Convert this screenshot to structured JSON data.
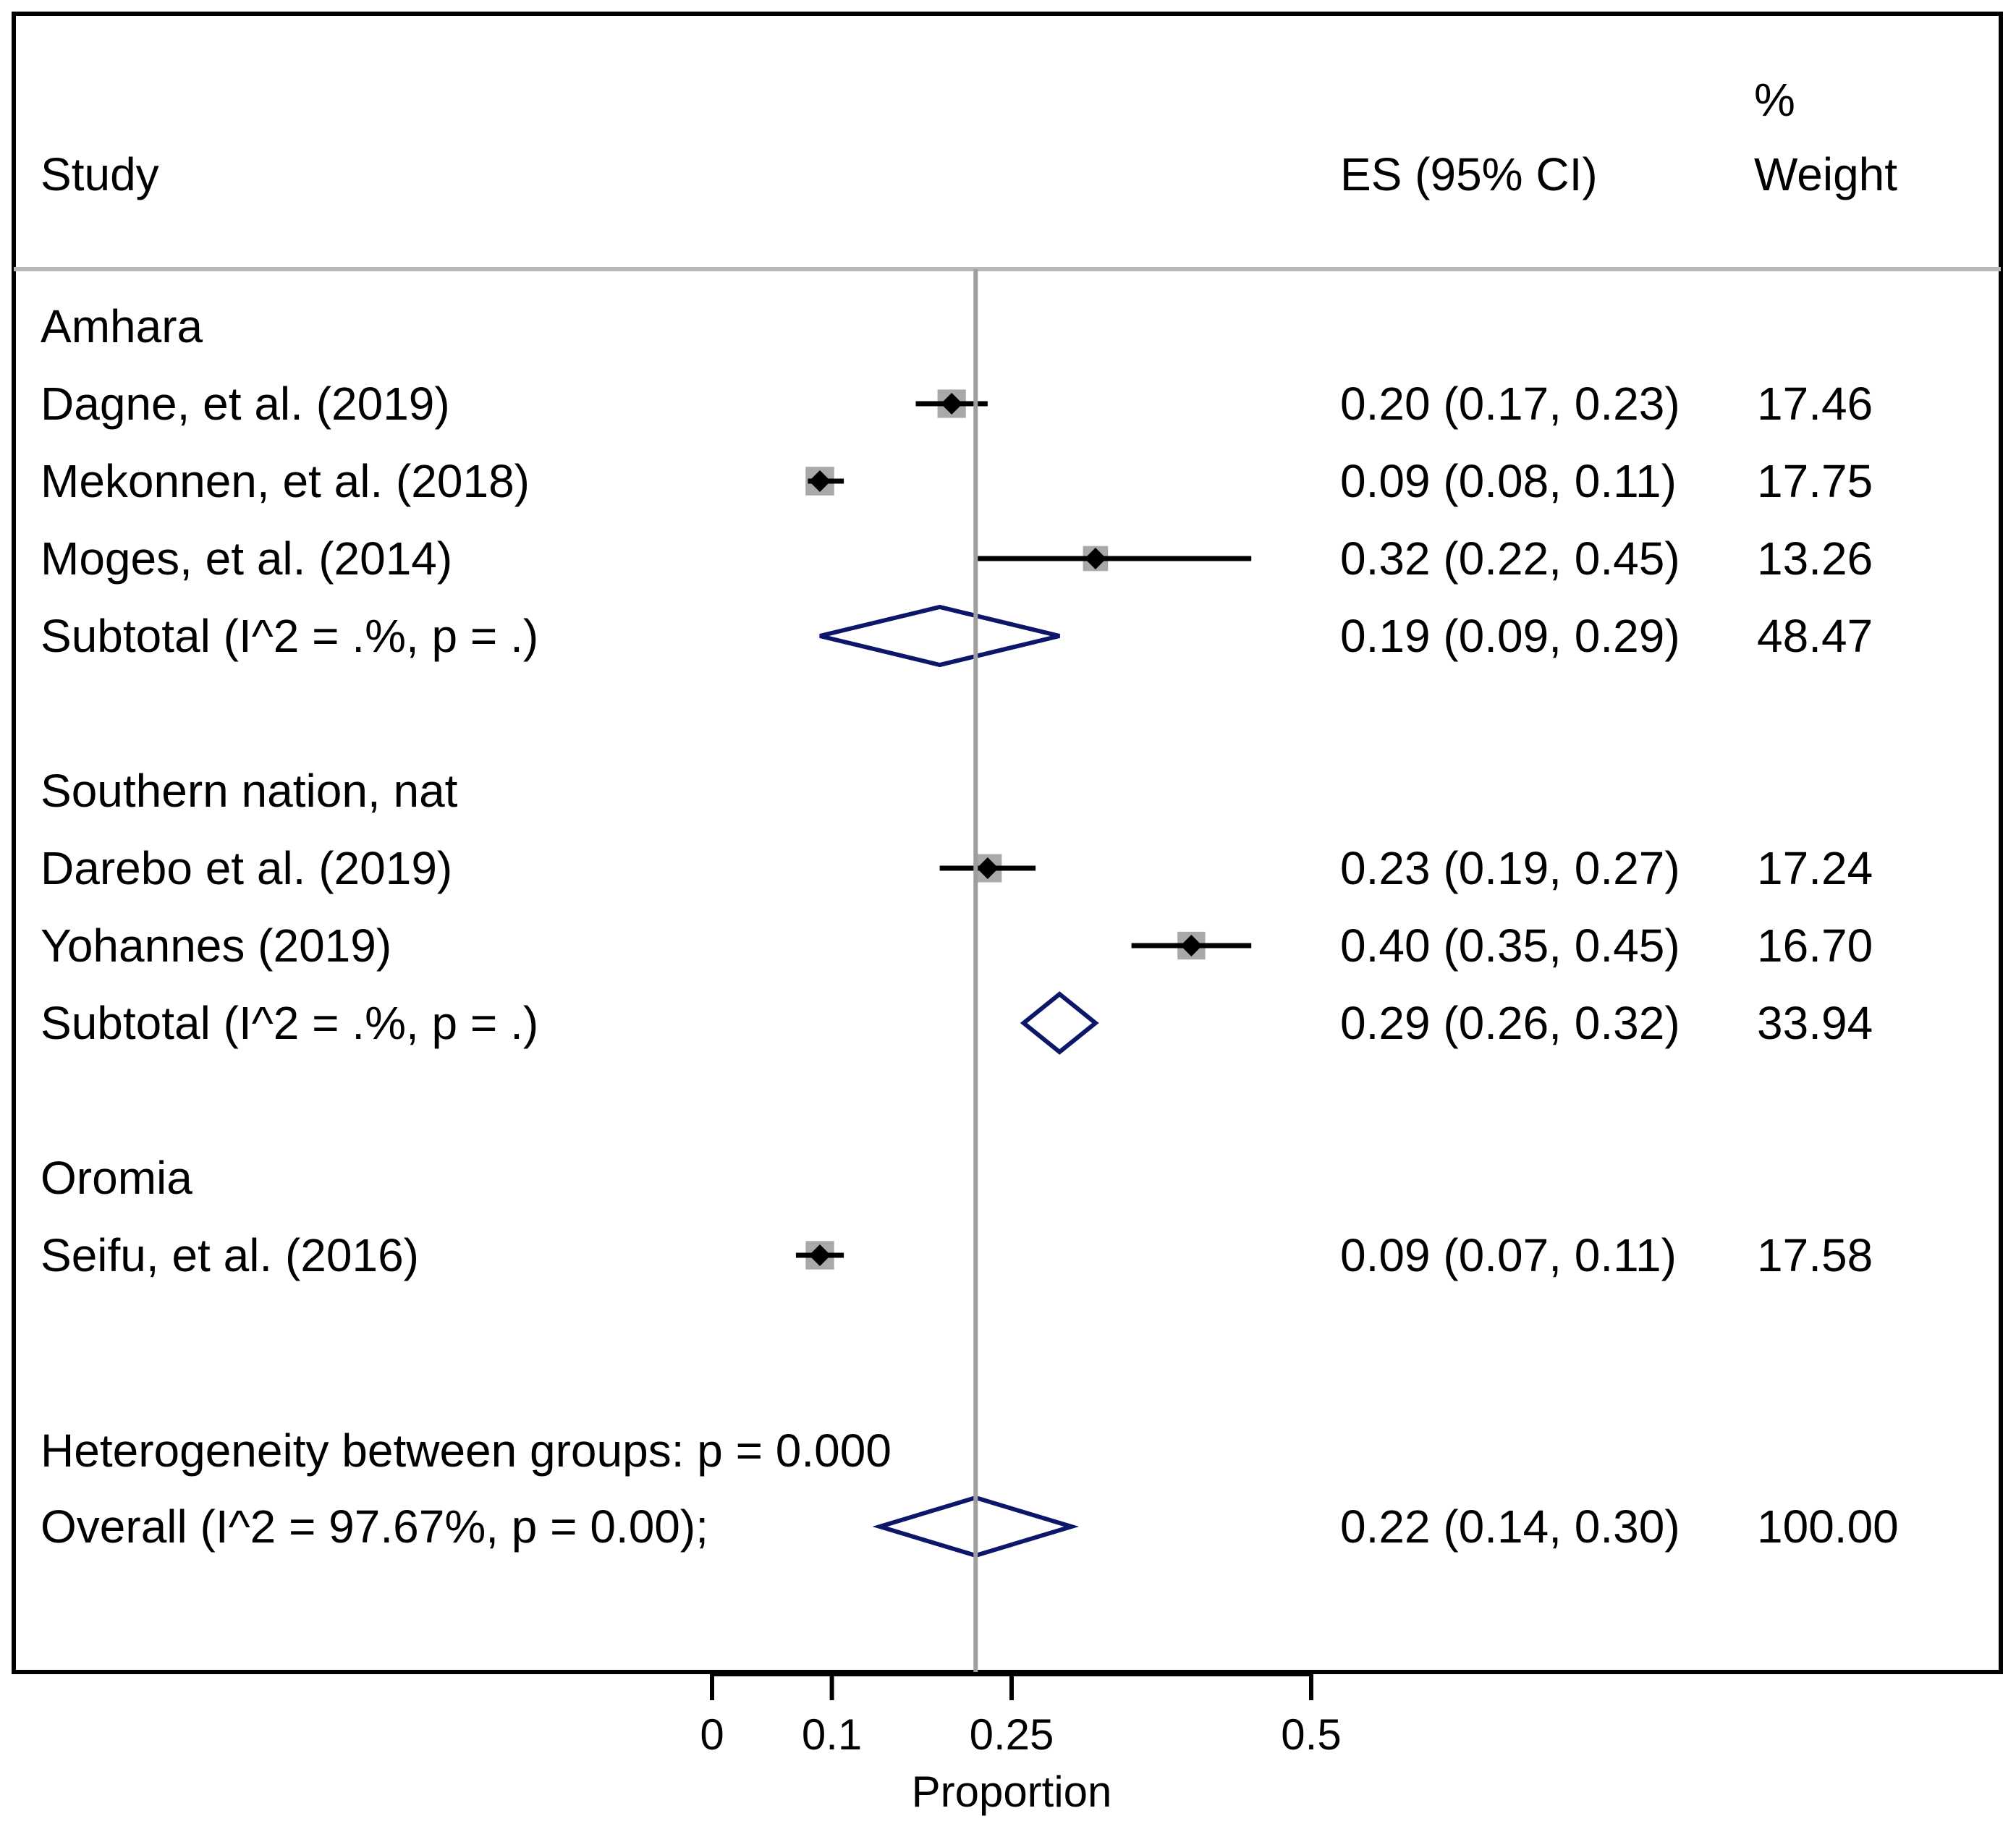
{
  "chart_data": {
    "type": "forest",
    "headers": {
      "study": "Study",
      "es": "ES (95% CI)",
      "weight_line1": "%",
      "weight_line2": "Weight"
    },
    "x_axis": {
      "label": "Proportion",
      "ticks": [
        0,
        0.1,
        0.25,
        0.5
      ],
      "tick_labels": [
        "0",
        "0.1",
        "0.25",
        "0.5"
      ],
      "range": [
        0,
        0.5
      ]
    },
    "reference_line": 0.22,
    "groups": [
      {
        "name": "Amhara",
        "studies": [
          {
            "label": "Dagne, et al. (2019)",
            "es": 0.2,
            "lo": 0.17,
            "hi": 0.23,
            "es_text": "0.20 (0.17, 0.23)",
            "weight": "17.46"
          },
          {
            "label": "Mekonnen,  et al. (2018)",
            "es": 0.09,
            "lo": 0.08,
            "hi": 0.11,
            "es_text": "0.09 (0.08, 0.11)",
            "weight": "17.75"
          },
          {
            "label": "Moges, et al. (2014)",
            "es": 0.32,
            "lo": 0.22,
            "hi": 0.45,
            "es_text": "0.32 (0.22, 0.45)",
            "weight": "13.26"
          }
        ],
        "subtotal": {
          "label": "Subtotal  (I^2 = .%, p = .)",
          "es": 0.19,
          "lo": 0.09,
          "hi": 0.29,
          "es_text": "0.19 (0.09, 0.29)",
          "weight": "48.47"
        }
      },
      {
        "name": "Southern nation, nat",
        "studies": [
          {
            "label": "Darebo et al. (2019)",
            "es": 0.23,
            "lo": 0.19,
            "hi": 0.27,
            "es_text": "0.23 (0.19, 0.27)",
            "weight": "17.24"
          },
          {
            "label": "Yohannes  (2019)",
            "es": 0.4,
            "lo": 0.35,
            "hi": 0.45,
            "es_text": "0.40 (0.35, 0.45)",
            "weight": "16.70"
          }
        ],
        "subtotal": {
          "label": "Subtotal  (I^2 = .%, p = .)",
          "es": 0.29,
          "lo": 0.26,
          "hi": 0.32,
          "es_text": "0.29 (0.26, 0.32)",
          "weight": "33.94"
        }
      },
      {
        "name": "Oromia",
        "studies": [
          {
            "label": "Seifu, et al. (2016)",
            "es": 0.09,
            "lo": 0.07,
            "hi": 0.11,
            "es_text": "0.09 (0.07, 0.11)",
            "weight": "17.58"
          }
        ],
        "subtotal": null
      }
    ],
    "heterogeneity": "Heterogeneity between groups: p = 0.000",
    "overall": {
      "label": "Overall  (I^2 = 97.67%, p = 0.00);",
      "es": 0.22,
      "lo": 0.14,
      "hi": 0.3,
      "es_text": "0.22 (0.14, 0.30)",
      "weight": "100.00"
    }
  }
}
